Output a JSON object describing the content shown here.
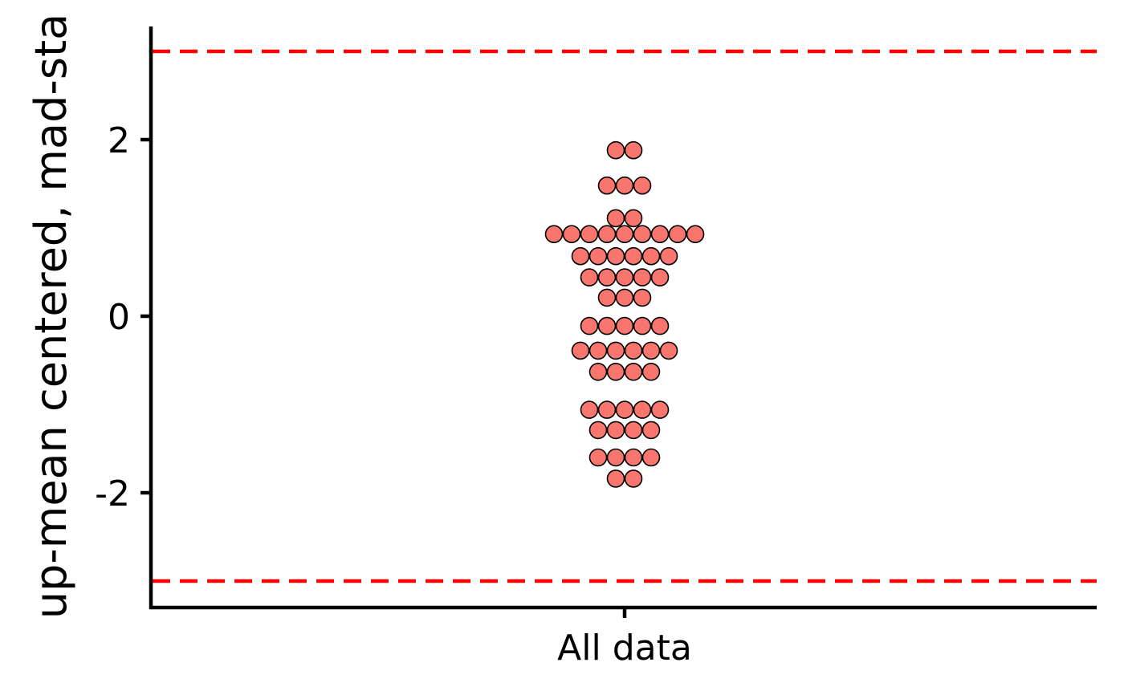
{
  "chart_data": {
    "type": "scatter",
    "subtype": "dotplot-beeswarm",
    "xlabel": "",
    "ylabel": "up-mean centered, mad-sta",
    "categories": [
      "All data"
    ],
    "yticks": [
      2,
      0,
      -2
    ],
    "ytick_labels": [
      "2",
      "0",
      "-2"
    ],
    "ylim": [
      -3.3,
      3.3
    ],
    "grid": false,
    "reference_lines": [
      {
        "y": 3,
        "color": "#ff0000",
        "style": "dashed"
      },
      {
        "y": -3,
        "color": "#ff0000",
        "style": "dashed"
      }
    ],
    "colors": {
      "point_fill": "#f8766d",
      "point_stroke": "#000000",
      "axis": "#000000"
    },
    "rows": [
      {
        "y": 1.88,
        "count": 2
      },
      {
        "y": 1.48,
        "count": 3
      },
      {
        "y": 1.11,
        "count": 2
      },
      {
        "y": 0.93,
        "count": 9
      },
      {
        "y": 0.68,
        "count": 6
      },
      {
        "y": 0.44,
        "count": 5
      },
      {
        "y": 0.21,
        "count": 3
      },
      {
        "y": -0.11,
        "count": 5
      },
      {
        "y": -0.39,
        "count": 6
      },
      {
        "y": -0.63,
        "count": 4
      },
      {
        "y": -1.06,
        "count": 5
      },
      {
        "y": -1.29,
        "count": 4
      },
      {
        "y": -1.6,
        "count": 4
      },
      {
        "y": -1.84,
        "count": 2
      }
    ]
  }
}
